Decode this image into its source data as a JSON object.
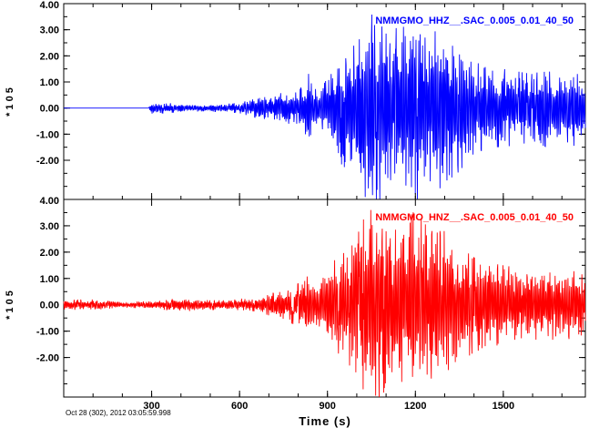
{
  "chart_data": [
    {
      "type": "line",
      "panel": "top",
      "series_name": "NMMGMO_HHZ__.SAC_0.005_0.01_40_50",
      "color": "#0000ff",
      "ylabel": "* 1 0 5",
      "ylim": [
        -3.5,
        4.0
      ],
      "yticks": [
        "4.00",
        "3.00",
        "2.00",
        "1.00",
        "0.00",
        "-1.00",
        "-2.00"
      ],
      "yticks_values": [
        4,
        3,
        2,
        1,
        0,
        -1,
        -2
      ],
      "envelope": {
        "x": [
          0,
          290,
          300,
          400,
          500,
          600,
          650,
          700,
          750,
          800,
          840,
          860,
          900,
          950,
          1000,
          1050,
          1100,
          1150,
          1200,
          1250,
          1300,
          1350,
          1400,
          1450,
          1500,
          1550,
          1600,
          1650,
          1700,
          1750,
          1780
        ],
        "y": [
          0.0,
          0.0,
          0.25,
          0.15,
          0.12,
          0.2,
          0.35,
          0.45,
          0.6,
          0.6,
          1.4,
          0.7,
          1.1,
          2.2,
          2.6,
          4.0,
          3.2,
          3.0,
          3.6,
          2.8,
          3.2,
          2.4,
          1.8,
          1.5,
          1.5,
          1.4,
          1.3,
          1.5,
          1.2,
          1.5,
          1.2
        ]
      },
      "offset": 0.0
    },
    {
      "type": "line",
      "panel": "bottom",
      "series_name": "NMMGMO_HNZ__.SAC_0.005_0.01_40_50",
      "color": "#ff0000",
      "ylabel": "* 1 0 5",
      "ylim": [
        -3.5,
        4.0
      ],
      "yticks": [
        "4.00",
        "3.00",
        "2.00",
        "1.00",
        "0.00",
        "-1.00",
        "-2.00"
      ],
      "yticks_values": [
        4,
        3,
        2,
        1,
        0,
        -1,
        -2
      ],
      "envelope": {
        "x": [
          0,
          100,
          200,
          300,
          400,
          500,
          600,
          650,
          700,
          750,
          800,
          840,
          860,
          900,
          950,
          1000,
          1050,
          1100,
          1150,
          1200,
          1250,
          1300,
          1350,
          1400,
          1450,
          1500,
          1550,
          1600,
          1650,
          1700,
          1750,
          1780
        ],
        "y": [
          0.2,
          0.2,
          0.1,
          0.15,
          0.25,
          0.2,
          0.2,
          0.25,
          0.4,
          0.6,
          0.8,
          1.3,
          0.8,
          1.4,
          2.0,
          2.6,
          4.0,
          3.2,
          3.0,
          3.6,
          2.8,
          2.8,
          2.2,
          1.8,
          1.6,
          1.5,
          1.4,
          1.3,
          1.4,
          1.2,
          1.4,
          1.0
        ]
      },
      "offset": 0.0
    }
  ],
  "xaxis": {
    "title": "Time (s)",
    "xlim": [
      0,
      1780
    ],
    "ticks": [
      300,
      600,
      900,
      1200,
      1500
    ],
    "tick_labels": [
      "300",
      "600",
      "900",
      "1200",
      "1500"
    ]
  },
  "date_label": "Oct 28 (302), 2012 03:05:59.998"
}
